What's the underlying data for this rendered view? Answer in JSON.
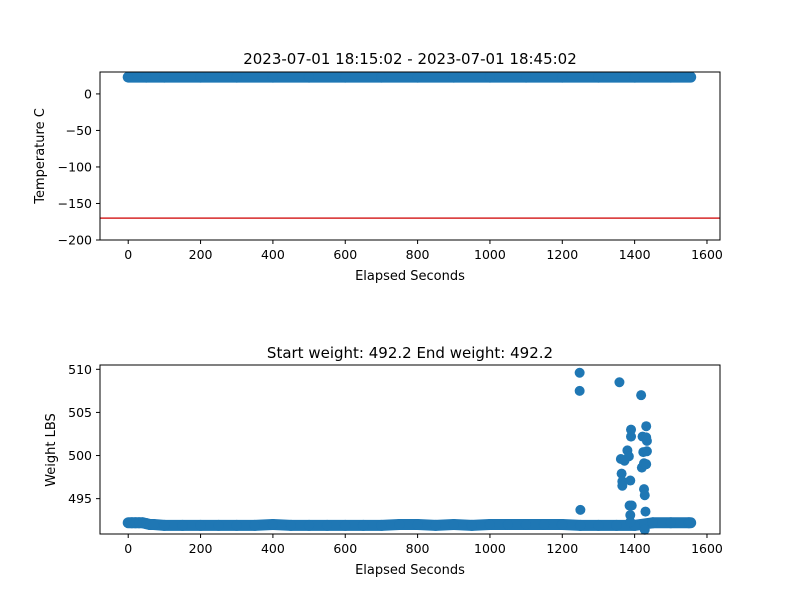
{
  "chart_data": [
    {
      "type": "scatter",
      "title": "2023-07-01 18:15:02 - 2023-07-01 18:45:02",
      "xlabel": "Elapsed Seconds",
      "ylabel": "Temperature C",
      "xlim": [
        -78,
        1636
      ],
      "ylim": [
        -200,
        30
      ],
      "xticks": [
        0,
        200,
        400,
        600,
        800,
        1000,
        1200,
        1400,
        1600
      ],
      "yticks": [
        0,
        -50,
        -100,
        -150,
        -200
      ],
      "point_color": "#1f77b4",
      "series": [
        {
          "points": [
            [
              0,
              23
            ],
            [
              50,
              23
            ],
            [
              100,
              23
            ],
            [
              200,
              23
            ],
            [
              300,
              23
            ],
            [
              400,
              23
            ],
            [
              500,
              23
            ],
            [
              600,
              23
            ],
            [
              700,
              23
            ],
            [
              800,
              23
            ],
            [
              900,
              23
            ],
            [
              1000,
              23
            ],
            [
              1100,
              23
            ],
            [
              1200,
              23
            ],
            [
              1300,
              23
            ],
            [
              1400,
              23
            ],
            [
              1500,
              23
            ],
            [
              1555,
              23
            ]
          ]
        }
      ],
      "hlines": [
        {
          "y": -170,
          "color": "#d62728"
        }
      ],
      "grid": false,
      "legend": "none"
    },
    {
      "type": "scatter",
      "title": "Start weight: 492.2 End weight: 492.2",
      "xlabel": "Elapsed Seconds",
      "ylabel": "Weight LBS",
      "xlim": [
        -78,
        1636
      ],
      "ylim": [
        490.9,
        510.5
      ],
      "xticks": [
        0,
        200,
        400,
        600,
        800,
        1000,
        1200,
        1400,
        1600
      ],
      "yticks": [
        510,
        505,
        500,
        495
      ],
      "point_color": "#1f77b4",
      "series": [
        {
          "points": [
            [
              0,
              492.2
            ],
            [
              10,
              492.2
            ],
            [
              20,
              492.2
            ],
            [
              30,
              492.2
            ],
            [
              40,
              492.2
            ],
            [
              50,
              492.1
            ],
            [
              60,
              492.0
            ],
            [
              70,
              492.0
            ],
            [
              100,
              491.9
            ],
            [
              150,
              491.9
            ],
            [
              200,
              491.9
            ],
            [
              250,
              491.9
            ],
            [
              300,
              491.9
            ],
            [
              350,
              491.9
            ],
            [
              400,
              492.0
            ],
            [
              450,
              491.9
            ],
            [
              500,
              491.9
            ],
            [
              550,
              491.9
            ],
            [
              600,
              491.9
            ],
            [
              650,
              491.9
            ],
            [
              700,
              491.9
            ],
            [
              750,
              492.0
            ],
            [
              800,
              492.0
            ],
            [
              850,
              491.9
            ],
            [
              900,
              492.0
            ],
            [
              950,
              491.9
            ],
            [
              1000,
              492.0
            ],
            [
              1050,
              492.0
            ],
            [
              1100,
              492.0
            ],
            [
              1150,
              492.0
            ],
            [
              1200,
              492.0
            ],
            [
              1250,
              491.9
            ],
            [
              1300,
              491.9
            ],
            [
              1350,
              491.9
            ],
            [
              1400,
              491.9
            ],
            [
              1450,
              492.2
            ],
            [
              1500,
              492.2
            ],
            [
              1550,
              492.2
            ],
            [
              1555,
              492.2
            ],
            [
              1248,
              509.6
            ],
            [
              1248,
              507.5
            ],
            [
              1250,
              493.7
            ],
            [
              1358,
              508.5
            ],
            [
              1362,
              499.6
            ],
            [
              1364,
              497.9
            ],
            [
              1366,
              497.0
            ],
            [
              1366,
              496.5
            ],
            [
              1372,
              499.4
            ],
            [
              1380,
              500.6
            ],
            [
              1384,
              499.9
            ],
            [
              1386,
              494.2
            ],
            [
              1388,
              497.1
            ],
            [
              1388,
              493.1
            ],
            [
              1388,
              492.3
            ],
            [
              1390,
              503.0
            ],
            [
              1390,
              502.2
            ],
            [
              1392,
              494.2
            ],
            [
              1418,
              507.0
            ],
            [
              1420,
              498.6
            ],
            [
              1422,
              502.2
            ],
            [
              1424,
              500.4
            ],
            [
              1426,
              499.1
            ],
            [
              1426,
              496.1
            ],
            [
              1428,
              495.4
            ],
            [
              1430,
              493.5
            ],
            [
              1428,
              491.4
            ],
            [
              1432,
              503.4
            ],
            [
              1432,
              502.1
            ],
            [
              1434,
              501.7
            ],
            [
              1434,
              500.5
            ],
            [
              1432,
              499.0
            ]
          ]
        }
      ],
      "grid": false,
      "legend": "none"
    }
  ]
}
